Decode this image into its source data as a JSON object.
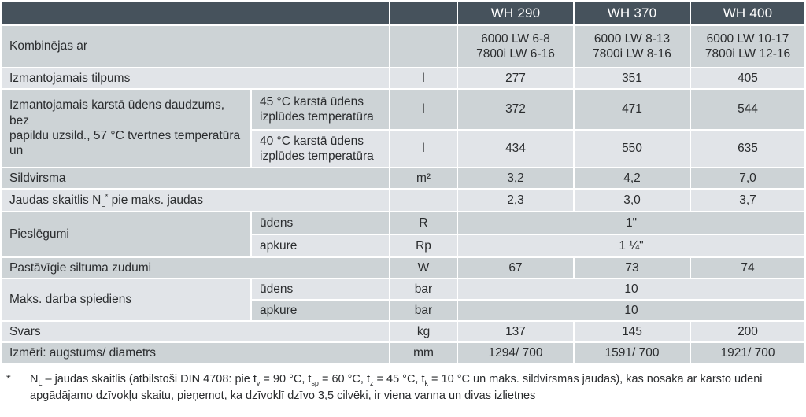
{
  "header": {
    "models": [
      "WH 290",
      "WH 370",
      "WH 400"
    ]
  },
  "rows": {
    "kombinejas": {
      "label": "Kombinējas ar",
      "values": [
        [
          "6000 LW 6-8",
          "7800i LW 6-16"
        ],
        [
          "6000 LW 8-13",
          "7800i LW 8-16"
        ],
        [
          "6000 LW 10-17",
          "7800i LW 12-16"
        ]
      ]
    },
    "tilpums": {
      "label": "Izmantojamais tilpums",
      "unit": "l",
      "values": [
        "277",
        "351",
        "405"
      ]
    },
    "karsta_udens": {
      "label_line1": "Izmantojamais karstā ūdens daudzums, bez",
      "label_line2": "papildu uzsild., 57 °C tvertnes temperatūra un",
      "sub45": {
        "line1": "45 °C karstā ūdens",
        "line2": "izplūdes temperatūra",
        "unit": "l",
        "values": [
          "372",
          "471",
          "544"
        ]
      },
      "sub40": {
        "line1": "40 °C karstā ūdens",
        "line2": "izplūdes temperatūra",
        "unit": "l",
        "values": [
          "434",
          "550",
          "635"
        ]
      }
    },
    "sildvirsma": {
      "label": "Sildvirsma",
      "unit": "m²",
      "values": [
        "3,2",
        "4,2",
        "7,0"
      ]
    },
    "jaudas": {
      "label_rich": [
        {
          "t": "Jaudas skaitlis N"
        },
        {
          "t": "L",
          "s": "sub"
        },
        {
          "t": "*",
          "s": "sup"
        },
        {
          "t": " pie maks. jaudas"
        }
      ],
      "unit": "",
      "values": [
        "2,3",
        "3,0",
        "3,7"
      ]
    },
    "pieslegumi": {
      "label": "Pieslēgumi",
      "udens": {
        "sub": "ūdens",
        "unit": "R",
        "value": "1\""
      },
      "apkure": {
        "sub": "apkure",
        "unit": "Rp",
        "value": "1 ¼\""
      }
    },
    "zudumi": {
      "label": "Pastāvīgie siltuma zudumi",
      "unit": "W",
      "values": [
        "67",
        "73",
        "74"
      ]
    },
    "spiediens": {
      "label": "Maks. darba spiediens",
      "udens": {
        "sub": "ūdens",
        "unit": "bar",
        "value": "10"
      },
      "apkure": {
        "sub": "apkure",
        "unit": "bar",
        "value": "10"
      }
    },
    "svars": {
      "label": "Svars",
      "unit": "kg",
      "values": [
        "137",
        "145",
        "200"
      ]
    },
    "izmeri": {
      "label": "Izmēri: augstums/ diametrs",
      "unit": "mm",
      "values": [
        "1294/ 700",
        "1591/ 700",
        "1921/ 700"
      ]
    }
  },
  "footnote": {
    "marker": "*",
    "rich": [
      {
        "t": "N"
      },
      {
        "t": "L",
        "s": "sub"
      },
      {
        "t": " – jaudas skaitlis (atbilstoši DIN 4708: pie t"
      },
      {
        "t": "v",
        "s": "sub"
      },
      {
        "t": " = 90 °C, t"
      },
      {
        "t": "sp",
        "s": "sub"
      },
      {
        "t": " = 60 °C, t"
      },
      {
        "t": "z",
        "s": "sub"
      },
      {
        "t": " = 45 °C, t"
      },
      {
        "t": "k",
        "s": "sub"
      },
      {
        "t": " = 10 °C un maks. sildvirsmas jaudas), kas nosaka ar karsto ūdeni apgādājamo dzīvokļu skaitu, pieņemot, ka dzīvoklī dzīvo 3,5 cilvēki, ir viena vanna un divas izlietnes"
      }
    ]
  },
  "colors": {
    "header_bg": "#46525c",
    "row_gray": "#cdd3d6",
    "row_light": "#e1e4e8",
    "text": "#2a2c2e",
    "header_text": "#ffffff"
  }
}
